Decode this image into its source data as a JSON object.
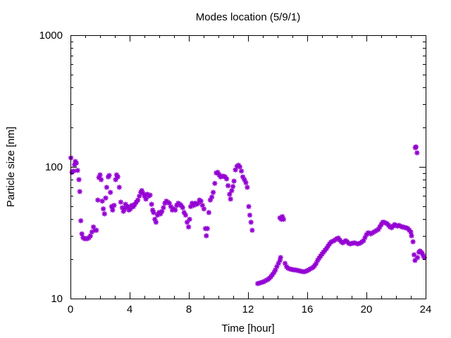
{
  "chart_data": {
    "type": "scatter",
    "title": "Modes location (5/9/1)",
    "xlabel": "Time [hour]",
    "ylabel": "Particle size [nm]",
    "xlim": [
      0,
      24
    ],
    "ylim": [
      10,
      1000
    ],
    "yscale": "log",
    "x_ticks": [
      "0",
      "4",
      "8",
      "12",
      "16",
      "20",
      "24"
    ],
    "y_ticks": [
      "10",
      "100",
      "1000"
    ],
    "grid": false,
    "marker_color": "#9400d3",
    "series": [
      {
        "points": [
          [
            0.03,
            117
          ],
          [
            0.1,
            91
          ],
          [
            0.2,
            93
          ],
          [
            0.27,
            104
          ],
          [
            0.33,
            110
          ],
          [
            0.4,
            107
          ],
          [
            0.48,
            94
          ],
          [
            0.57,
            80
          ],
          [
            0.63,
            65
          ],
          [
            0.7,
            39
          ],
          [
            0.77,
            31
          ],
          [
            0.85,
            29
          ],
          [
            0.95,
            28.5
          ],
          [
            1.05,
            28.5
          ],
          [
            1.15,
            28.5
          ],
          [
            1.25,
            29
          ],
          [
            1.35,
            30
          ],
          [
            1.45,
            32
          ],
          [
            1.55,
            35
          ],
          [
            1.65,
            33
          ],
          [
            1.75,
            33
          ],
          [
            1.85,
            56
          ],
          [
            1.92,
            83
          ],
          [
            2.0,
            87
          ],
          [
            2.07,
            80
          ],
          [
            2.15,
            55
          ],
          [
            2.22,
            48
          ],
          [
            2.3,
            44
          ],
          [
            2.38,
            58
          ],
          [
            2.45,
            70
          ],
          [
            2.55,
            84
          ],
          [
            2.62,
            86
          ],
          [
            2.7,
            64
          ],
          [
            2.78,
            50
          ],
          [
            2.85,
            47
          ],
          [
            2.95,
            51
          ],
          [
            3.05,
            80
          ],
          [
            3.12,
            87
          ],
          [
            3.2,
            84
          ],
          [
            3.3,
            70
          ],
          [
            3.4,
            54
          ],
          [
            3.5,
            49
          ],
          [
            3.58,
            46
          ],
          [
            3.65,
            48
          ],
          [
            3.72,
            52
          ],
          [
            3.8,
            50
          ],
          [
            3.88,
            50
          ],
          [
            3.95,
            47
          ],
          [
            4.05,
            48
          ],
          [
            4.15,
            51
          ],
          [
            4.25,
            50
          ],
          [
            4.35,
            52
          ],
          [
            4.45,
            54
          ],
          [
            4.55,
            56
          ],
          [
            4.65,
            60
          ],
          [
            4.75,
            64
          ],
          [
            4.82,
            66
          ],
          [
            4.9,
            63
          ],
          [
            5.0,
            60
          ],
          [
            5.1,
            57
          ],
          [
            5.18,
            62
          ],
          [
            5.28,
            60
          ],
          [
            5.38,
            61
          ],
          [
            5.48,
            52
          ],
          [
            5.55,
            47
          ],
          [
            5.62,
            45
          ],
          [
            5.7,
            40
          ],
          [
            5.78,
            38
          ],
          [
            5.88,
            43
          ],
          [
            5.98,
            45
          ],
          [
            6.08,
            44
          ],
          [
            6.18,
            46
          ],
          [
            6.28,
            49
          ],
          [
            6.38,
            53
          ],
          [
            6.48,
            55
          ],
          [
            6.58,
            54
          ],
          [
            6.68,
            53
          ],
          [
            6.78,
            50
          ],
          [
            6.88,
            47
          ],
          [
            6.98,
            48
          ],
          [
            7.08,
            47
          ],
          [
            7.18,
            51
          ],
          [
            7.28,
            53
          ],
          [
            7.38,
            52
          ],
          [
            7.48,
            51
          ],
          [
            7.58,
            49
          ],
          [
            7.68,
            45
          ],
          [
            7.78,
            43
          ],
          [
            7.88,
            38
          ],
          [
            7.98,
            35
          ],
          [
            8.05,
            40
          ],
          [
            8.12,
            50
          ],
          [
            8.22,
            53
          ],
          [
            8.32,
            51
          ],
          [
            8.42,
            53
          ],
          [
            8.52,
            52
          ],
          [
            8.62,
            53
          ],
          [
            8.72,
            56
          ],
          [
            8.82,
            55
          ],
          [
            8.92,
            51
          ],
          [
            9.02,
            48
          ],
          [
            9.12,
            34
          ],
          [
            9.18,
            30
          ],
          [
            9.25,
            34
          ],
          [
            9.35,
            45
          ],
          [
            9.45,
            56
          ],
          [
            9.55,
            59
          ],
          [
            9.65,
            64
          ],
          [
            9.75,
            75
          ],
          [
            9.85,
            90
          ],
          [
            9.95,
            91
          ],
          [
            10.05,
            87
          ],
          [
            10.15,
            84
          ],
          [
            10.25,
            85
          ],
          [
            10.35,
            85
          ],
          [
            10.45,
            84
          ],
          [
            10.55,
            81
          ],
          [
            10.65,
            72
          ],
          [
            10.75,
            62
          ],
          [
            10.82,
            57
          ],
          [
            10.9,
            66
          ],
          [
            10.98,
            71
          ],
          [
            11.05,
            78
          ],
          [
            11.15,
            95
          ],
          [
            11.25,
            101
          ],
          [
            11.35,
            103
          ],
          [
            11.45,
            100
          ],
          [
            11.55,
            93
          ],
          [
            11.65,
            84
          ],
          [
            11.75,
            80
          ],
          [
            11.85,
            76
          ],
          [
            11.95,
            70
          ],
          [
            12.05,
            50
          ],
          [
            12.12,
            43
          ],
          [
            12.2,
            38
          ],
          [
            12.28,
            33
          ],
          [
            12.65,
            13.0
          ],
          [
            12.75,
            13.1
          ],
          [
            12.85,
            13.2
          ],
          [
            12.95,
            13.3
          ],
          [
            13.05,
            13.4
          ],
          [
            13.15,
            13.6
          ],
          [
            13.25,
            13.8
          ],
          [
            13.35,
            14.0
          ],
          [
            13.45,
            14.3
          ],
          [
            13.55,
            14.7
          ],
          [
            13.65,
            15.2
          ],
          [
            13.75,
            15.8
          ],
          [
            13.85,
            16.5
          ],
          [
            13.95,
            17.5
          ],
          [
            14.05,
            18.5
          ],
          [
            14.15,
            19.5
          ],
          [
            14.2,
            20.5
          ],
          [
            14.15,
            41
          ],
          [
            14.25,
            40
          ],
          [
            14.32,
            42
          ],
          [
            14.4,
            40
          ],
          [
            14.5,
            18.5
          ],
          [
            14.6,
            17.5
          ],
          [
            14.7,
            17.0
          ],
          [
            14.8,
            16.8
          ],
          [
            14.9,
            16.7
          ],
          [
            15.0,
            16.6
          ],
          [
            15.1,
            16.5
          ],
          [
            15.2,
            16.5
          ],
          [
            15.3,
            16.4
          ],
          [
            15.4,
            16.3
          ],
          [
            15.5,
            16.2
          ],
          [
            15.6,
            16.1
          ],
          [
            15.7,
            16.0
          ],
          [
            15.8,
            16.0
          ],
          [
            15.9,
            16.1
          ],
          [
            16.0,
            16.3
          ],
          [
            16.1,
            16.5
          ],
          [
            16.2,
            16.8
          ],
          [
            16.3,
            17.0
          ],
          [
            16.4,
            17.3
          ],
          [
            16.5,
            17.8
          ],
          [
            16.6,
            18.5
          ],
          [
            16.7,
            19.5
          ],
          [
            16.8,
            20.3
          ],
          [
            16.9,
            21.0
          ],
          [
            17.0,
            21.8
          ],
          [
            17.1,
            22.5
          ],
          [
            17.2,
            23.3
          ],
          [
            17.3,
            24.0
          ],
          [
            17.4,
            25.0
          ],
          [
            17.5,
            26.0
          ],
          [
            17.6,
            26.8
          ],
          [
            17.7,
            27.2
          ],
          [
            17.8,
            27.5
          ],
          [
            17.9,
            28.0
          ],
          [
            18.0,
            28.5
          ],
          [
            18.1,
            28.8
          ],
          [
            18.2,
            27.8
          ],
          [
            18.3,
            27.0
          ],
          [
            18.4,
            26.5
          ],
          [
            18.5,
            27.0
          ],
          [
            18.6,
            27.5
          ],
          [
            18.7,
            27.0
          ],
          [
            18.8,
            26.3
          ],
          [
            18.9,
            26.0
          ],
          [
            19.0,
            26.2
          ],
          [
            19.1,
            26.4
          ],
          [
            19.2,
            26.5
          ],
          [
            19.3,
            26.3
          ],
          [
            19.4,
            26.0
          ],
          [
            19.5,
            26.2
          ],
          [
            19.6,
            26.5
          ],
          [
            19.7,
            27.0
          ],
          [
            19.8,
            27.5
          ],
          [
            19.9,
            29.0
          ],
          [
            20.0,
            30.5
          ],
          [
            20.1,
            31.5
          ],
          [
            20.2,
            31.5
          ],
          [
            20.3,
            31.0
          ],
          [
            20.4,
            31.5
          ],
          [
            20.5,
            32.0
          ],
          [
            20.6,
            32.5
          ],
          [
            20.7,
            33.0
          ],
          [
            20.8,
            33.5
          ],
          [
            20.9,
            35.0
          ],
          [
            21.0,
            36.5
          ],
          [
            21.1,
            38.0
          ],
          [
            21.2,
            38.0
          ],
          [
            21.3,
            37.5
          ],
          [
            21.4,
            37.0
          ],
          [
            21.5,
            36.0
          ],
          [
            21.6,
            35.0
          ],
          [
            21.7,
            34.5
          ],
          [
            21.8,
            35.5
          ],
          [
            21.9,
            36.5
          ],
          [
            22.0,
            36.0
          ],
          [
            22.1,
            35.5
          ],
          [
            22.2,
            36.0
          ],
          [
            22.3,
            35.5
          ],
          [
            22.4,
            35.0
          ],
          [
            22.5,
            35.0
          ],
          [
            22.6,
            34.5
          ],
          [
            22.7,
            34.5
          ],
          [
            22.8,
            34.0
          ],
          [
            22.9,
            33.0
          ],
          [
            23.0,
            32.0
          ],
          [
            23.05,
            30.0
          ],
          [
            23.15,
            27.0
          ],
          [
            23.22,
            21.5
          ],
          [
            23.28,
            19.5
          ],
          [
            23.3,
            140
          ],
          [
            23.35,
            142
          ],
          [
            23.42,
            128
          ],
          [
            23.45,
            20.5
          ],
          [
            23.55,
            22.5
          ],
          [
            23.62,
            23.0
          ],
          [
            23.7,
            22.5
          ],
          [
            23.78,
            22.0
          ],
          [
            23.85,
            21.0
          ],
          [
            23.92,
            20.5
          ]
        ]
      }
    ]
  }
}
